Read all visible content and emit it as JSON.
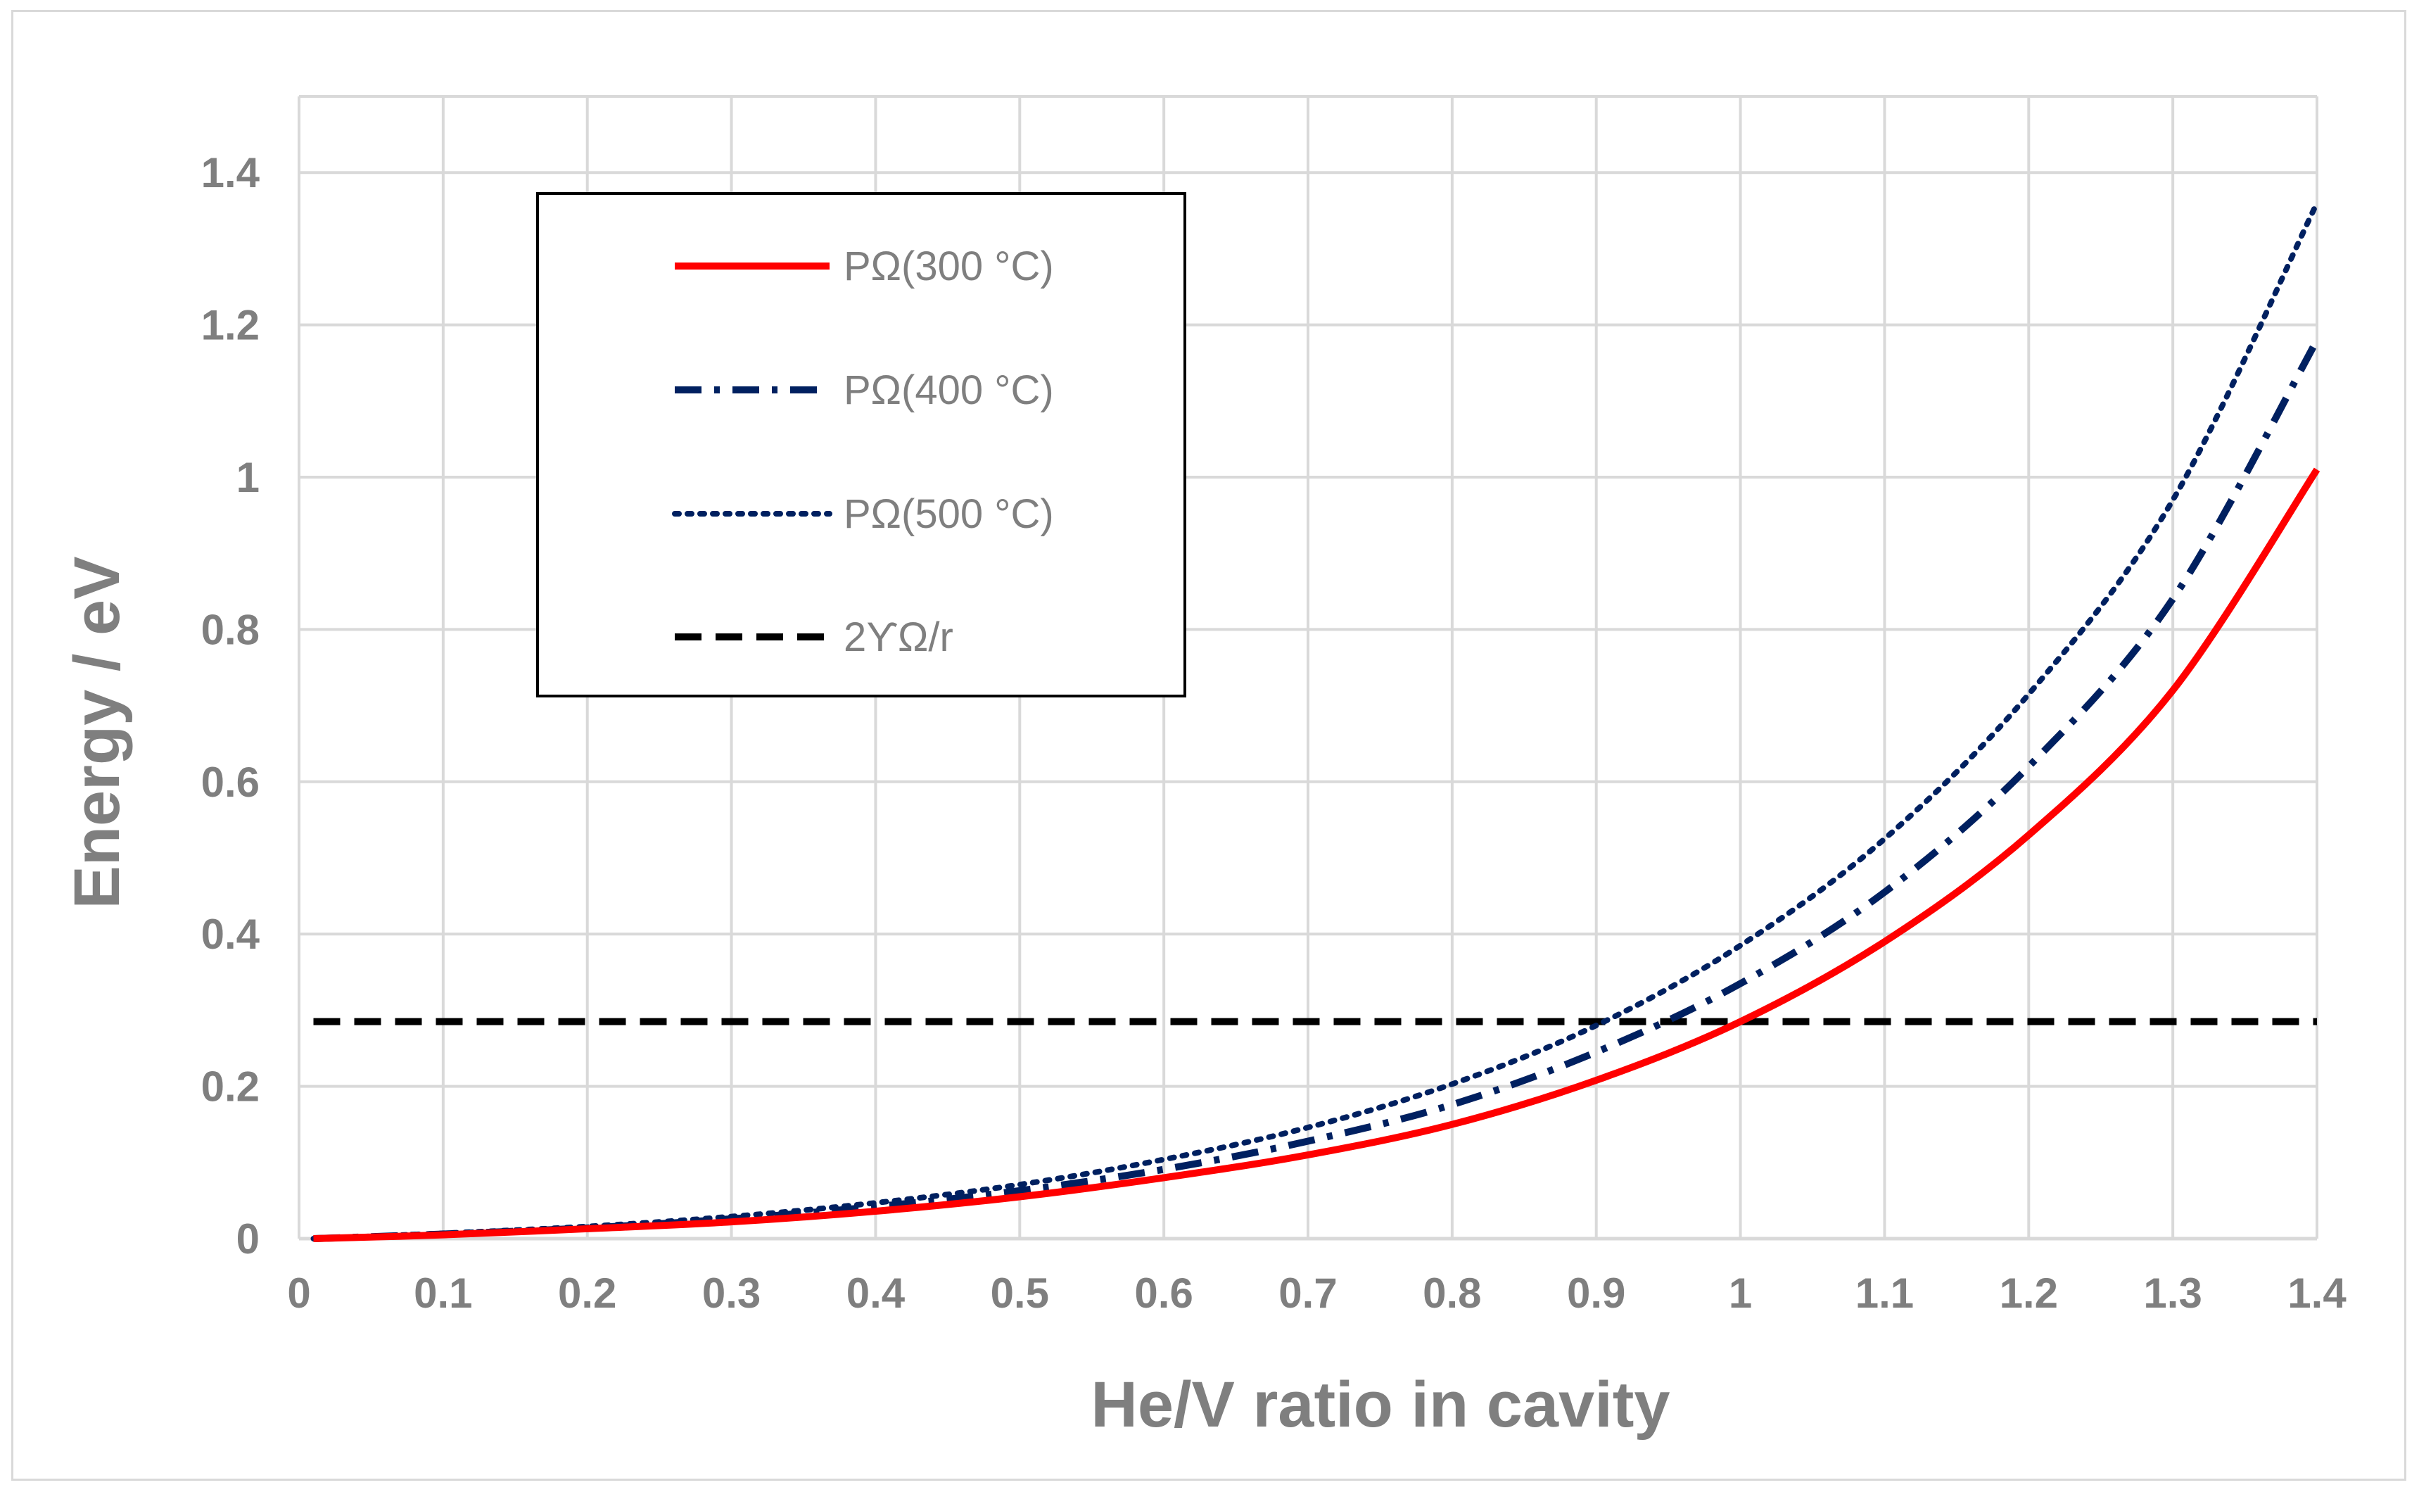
{
  "chart_data": {
    "type": "line",
    "title": "",
    "xlabel": "He/V ratio in cavity",
    "ylabel": "Energy / eV",
    "xlim": [
      0,
      1.4
    ],
    "ylim": [
      0,
      1.5
    ],
    "xticks": [
      0,
      0.1,
      0.2,
      0.3,
      0.4,
      0.5,
      0.6,
      0.7,
      0.8,
      0.9,
      1,
      1.1,
      1.2,
      1.3,
      1.4
    ],
    "xtick_labels": [
      "0",
      "0.1",
      "0.2",
      "0.3",
      "0.4",
      "0.5",
      "0.6",
      "0.7",
      "0.8",
      "0.9",
      "1",
      "1.1",
      "1.2",
      "1.3",
      "1.4"
    ],
    "yticks": [
      0,
      0.2,
      0.4,
      0.6,
      0.8,
      1,
      1.2,
      1.4
    ],
    "ytick_labels": [
      "0",
      "0.2",
      "0.4",
      "0.6",
      "0.8",
      "1",
      "1.2",
      "1.4"
    ],
    "grid": true,
    "legend_position": "top-left",
    "x": [
      0.01,
      0.1,
      0.2,
      0.3,
      0.4,
      0.5,
      0.6,
      0.7,
      0.8,
      0.9,
      1.0,
      1.1,
      1.2,
      1.3,
      1.4
    ],
    "series": [
      {
        "name": "PΩ(300 °C)",
        "color": "#ff0000",
        "style": "solid",
        "values": [
          0.0,
          0.005,
          0.013,
          0.022,
          0.036,
          0.055,
          0.08,
          0.11,
          0.15,
          0.208,
          0.285,
          0.39,
          0.53,
          0.72,
          1.01
        ]
      },
      {
        "name": "PΩ(400 °C)",
        "color": "#002060",
        "style": "dash-dot",
        "values": [
          0.0,
          0.006,
          0.014,
          0.026,
          0.042,
          0.063,
          0.091,
          0.128,
          0.176,
          0.245,
          0.335,
          0.455,
          0.62,
          0.84,
          1.18
        ]
      },
      {
        "name": "PΩ(500 °C)",
        "color": "#002060",
        "style": "dotted",
        "values": [
          0.0,
          0.007,
          0.016,
          0.029,
          0.047,
          0.071,
          0.104,
          0.146,
          0.203,
          0.28,
          0.385,
          0.525,
          0.715,
          0.97,
          1.36
        ]
      },
      {
        "name": "2ϒΩ/r",
        "color": "#000000",
        "style": "dashed",
        "values": [
          0.285,
          0.285,
          0.285,
          0.285,
          0.285,
          0.285,
          0.285,
          0.285,
          0.285,
          0.285,
          0.285,
          0.285,
          0.285,
          0.285,
          0.285
        ]
      }
    ]
  }
}
